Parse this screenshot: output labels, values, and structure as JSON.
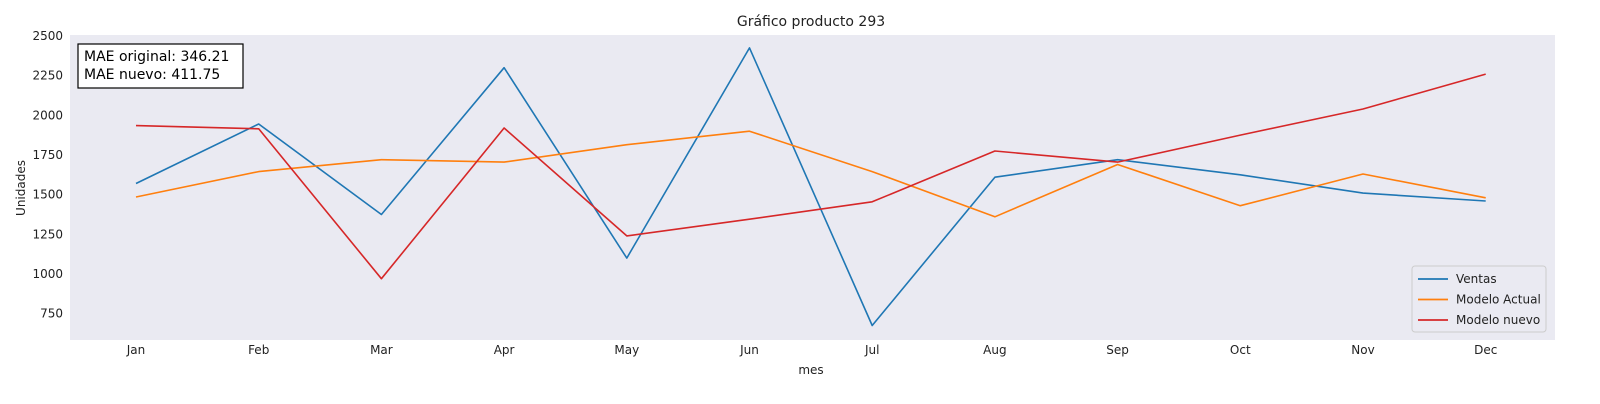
{
  "chart_data": {
    "type": "line",
    "title": "Gráfico producto 293",
    "xlabel": "mes",
    "ylabel": "Unidades",
    "categories": [
      "Jan",
      "Feb",
      "Mar",
      "Apr",
      "May",
      "Jun",
      "Jul",
      "Aug",
      "Sep",
      "Oct",
      "Nov",
      "Dec"
    ],
    "yticks": [
      750,
      1000,
      1250,
      1500,
      1750,
      2000,
      2250,
      2500
    ],
    "ylim": [
      590,
      2500
    ],
    "grid": false,
    "legend_position": "bottom-right",
    "annotation": {
      "line1": "MAE original: 346.21",
      "line2": "MAE nuevo: 411.75"
    },
    "series": [
      {
        "name": "Ventas",
        "color": "#1f77b4",
        "values": [
          1570,
          1945,
          1375,
          2300,
          1100,
          2425,
          675,
          1610,
          1720,
          1625,
          1510,
          1460
        ]
      },
      {
        "name": "Modelo Actual",
        "color": "#ff7f0e",
        "values": [
          1485,
          1645,
          1720,
          1705,
          1815,
          1900,
          1645,
          1360,
          1690,
          1430,
          1630,
          1480
        ]
      },
      {
        "name": "Modelo nuevo",
        "color": "#d62728",
        "values": [
          1935,
          1915,
          970,
          1920,
          1240,
          1345,
          1455,
          1775,
          1705,
          1875,
          2040,
          2260
        ]
      }
    ]
  }
}
